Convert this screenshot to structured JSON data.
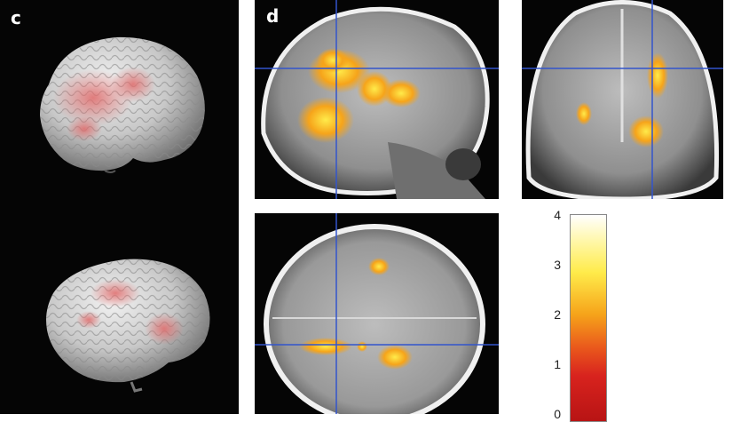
{
  "panel_c": {
    "label": "c"
  },
  "panel_d": {
    "label": "d"
  },
  "colors": {
    "background": "#050505",
    "crosshair": "#3355cc",
    "activation_high": "#ffeb4a",
    "activation_mid": "#f6a41a",
    "activation_low": "#d8231e",
    "surface_activation": "#e06a6a"
  },
  "colorbar": {
    "ticks": [
      "4",
      "3",
      "2",
      "1",
      "0"
    ],
    "min": 0,
    "max": 4
  }
}
